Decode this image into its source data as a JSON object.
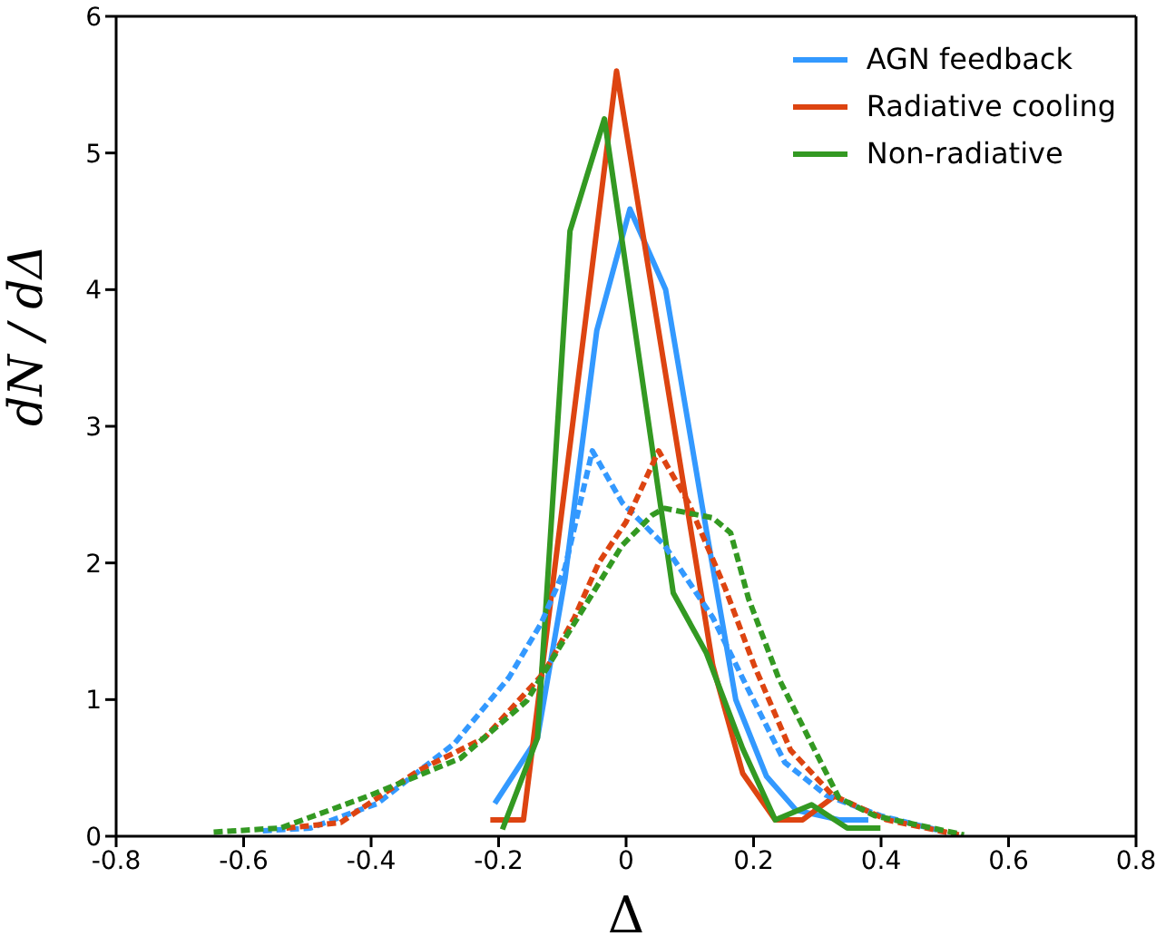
{
  "chart_data": {
    "type": "line",
    "xlabel": "Δ",
    "ylabel": "dN / dΔ",
    "xlim": [
      -0.8,
      0.8
    ],
    "xticks": [
      -0.8,
      -0.6,
      -0.4,
      -0.2,
      0.0,
      0.2,
      0.4,
      0.6,
      0.8
    ],
    "ylim": [
      0,
      6
    ],
    "yticks": [
      0,
      1,
      2,
      3,
      4,
      5,
      6
    ],
    "legend": "top right",
    "marker": "none",
    "series": [
      {
        "name": "AGN feedback",
        "color": "#3399ff",
        "line_style": "solid",
        "x": [
          -0.206,
          -0.139,
          -0.096,
          -0.046,
          0.006,
          0.062,
          0.12,
          0.172,
          0.22,
          0.267,
          0.334,
          0.38
        ],
        "values": [
          0.24,
          0.72,
          1.88,
          3.7,
          4.59,
          4.0,
          2.4,
          1.0,
          0.44,
          0.19,
          0.12,
          0.12
        ]
      },
      {
        "name": "Radiative cooling",
        "color": "#dd4411",
        "line_style": "solid",
        "x": [
          -0.213,
          -0.161,
          -0.015,
          0.136,
          0.183,
          0.234,
          0.277,
          0.329
        ],
        "values": [
          0.12,
          0.12,
          5.6,
          1.25,
          0.46,
          0.12,
          0.12,
          0.3
        ]
      },
      {
        "name": "Non-radiative",
        "color": "#339922",
        "line_style": "solid",
        "x": [
          -0.194,
          -0.139,
          -0.088,
          -0.034,
          0.074,
          0.126,
          0.183,
          0.234,
          0.291,
          0.347,
          0.399
        ],
        "values": [
          0.05,
          0.72,
          4.43,
          5.25,
          1.78,
          1.34,
          0.64,
          0.12,
          0.23,
          0.06,
          0.06
        ]
      },
      {
        "color": "#3399ff",
        "line_style": "dashed",
        "x": [
          -0.57,
          -0.495,
          -0.39,
          -0.269,
          -0.184,
          -0.133,
          -0.096,
          -0.053,
          -0.006,
          0.06,
          0.136,
          0.192,
          0.249,
          0.314,
          0.399,
          0.493
        ],
        "values": [
          0.04,
          0.06,
          0.24,
          0.68,
          1.16,
          1.56,
          1.96,
          2.82,
          2.44,
          2.13,
          1.6,
          1.07,
          0.54,
          0.3,
          0.15,
          0.04
        ]
      },
      {
        "color": "#dd4411",
        "line_style": "dashed",
        "x": [
          -0.533,
          -0.448,
          -0.326,
          -0.222,
          -0.128,
          -0.081,
          -0.043,
          0.0,
          0.051,
          0.098,
          0.155,
          0.201,
          0.258,
          0.324,
          0.409,
          0.522
        ],
        "values": [
          0.06,
          0.1,
          0.48,
          0.72,
          1.2,
          1.6,
          2.0,
          2.3,
          2.82,
          2.44,
          1.82,
          1.25,
          0.63,
          0.3,
          0.12,
          0.01
        ]
      },
      {
        "color": "#339922",
        "line_style": "dashed",
        "x": [
          -0.647,
          -0.542,
          -0.401,
          -0.26,
          -0.156,
          -0.081,
          -0.006,
          0.041,
          0.06,
          0.136,
          0.164,
          0.192,
          0.239,
          0.296,
          0.334,
          0.39,
          0.53
        ],
        "values": [
          0.03,
          0.06,
          0.3,
          0.57,
          0.99,
          1.56,
          2.13,
          2.35,
          2.4,
          2.33,
          2.22,
          1.74,
          1.16,
          0.63,
          0.28,
          0.15,
          0.01
        ]
      }
    ]
  }
}
